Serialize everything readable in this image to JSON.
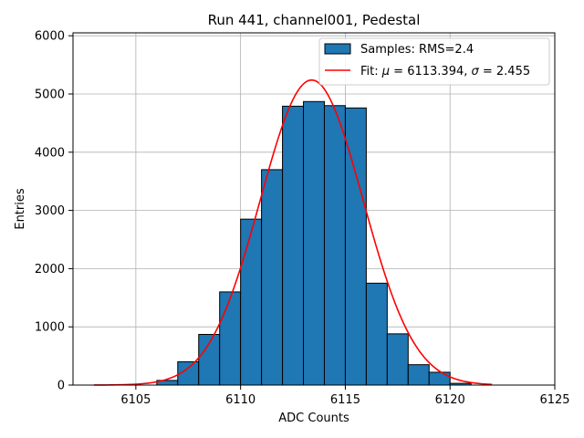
{
  "chart_data": {
    "type": "bar",
    "title": "Run 441, channel001, Pedestal",
    "xlabel": "ADC Counts",
    "ylabel": "Entries",
    "xlim": [
      6102,
      6125
    ],
    "ylim": [
      0,
      6050
    ],
    "xticks": [
      6105,
      6110,
      6115,
      6120,
      6125
    ],
    "yticks": [
      0,
      1000,
      2000,
      3000,
      4000,
      5000,
      6000
    ],
    "grid": true,
    "legend_position": "top-right",
    "colors": {
      "bar": "#1f77b4",
      "bar_edge": "#000000",
      "fit": "#ff0000"
    },
    "series": [
      {
        "kind": "histogram",
        "name": "Samples: RMS=2.4",
        "bin_width": 1,
        "bins": [
          {
            "x0": 6106,
            "value": 80
          },
          {
            "x0": 6107,
            "value": 400
          },
          {
            "x0": 6108,
            "value": 870
          },
          {
            "x0": 6109,
            "value": 1600
          },
          {
            "x0": 6110,
            "value": 2850
          },
          {
            "x0": 6111,
            "value": 3700
          },
          {
            "x0": 6112,
            "value": 4790
          },
          {
            "x0": 6113,
            "value": 4870
          },
          {
            "x0": 6114,
            "value": 4800
          },
          {
            "x0": 6115,
            "value": 4760
          },
          {
            "x0": 6116,
            "value": 1750
          },
          {
            "x0": 6117,
            "value": 880
          },
          {
            "x0": 6118,
            "value": 350
          },
          {
            "x0": 6119,
            "value": 220
          },
          {
            "x0": 6120,
            "value": 30
          }
        ]
      },
      {
        "kind": "gaussian_fit",
        "name": "Fit: μ = 6113.394, σ = 2.455",
        "name_prefix": "Fit: ",
        "mu_symbol": "μ",
        "mu_text": " = 6113.394, ",
        "sigma_symbol": "σ",
        "sigma_text": " = 2.455",
        "mu": 6113.394,
        "sigma": 2.455,
        "amplitude": 5240,
        "x_range": [
          6103,
          6122
        ]
      }
    ]
  }
}
